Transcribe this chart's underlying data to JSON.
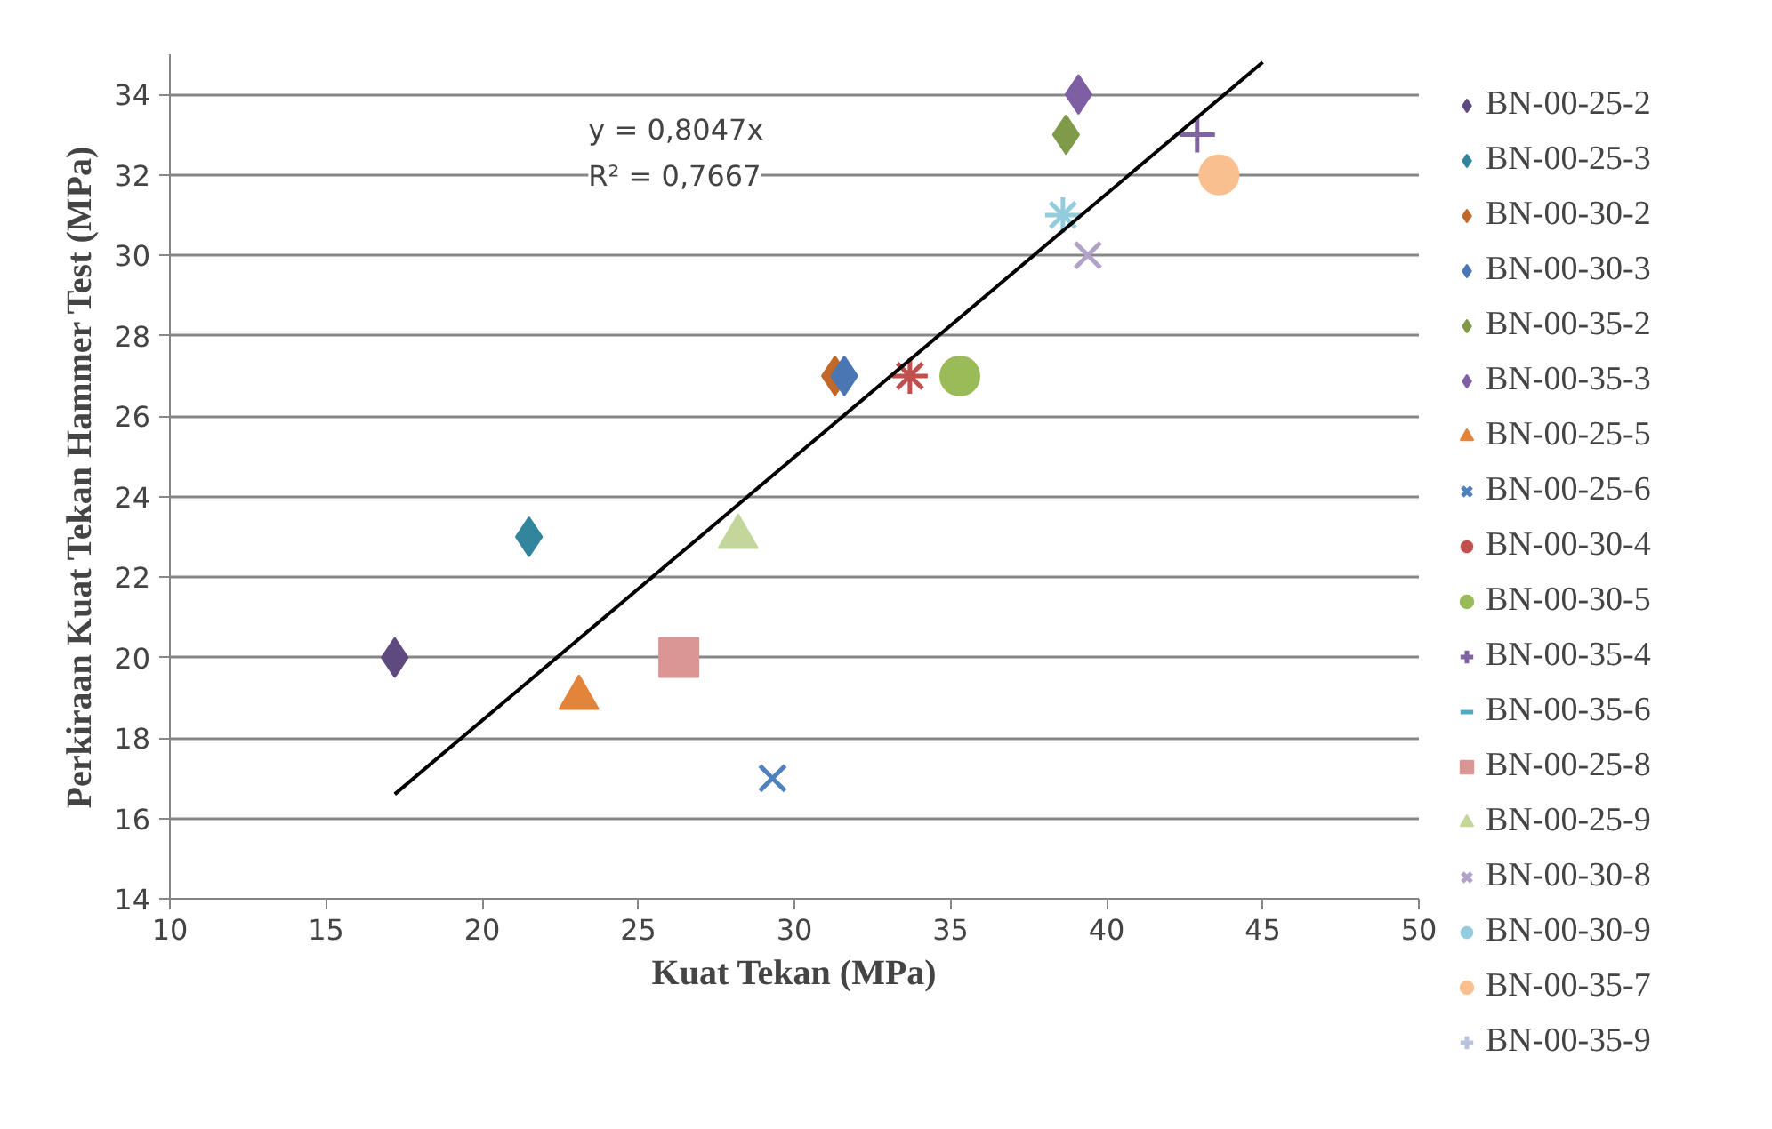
{
  "chart_data": {
    "type": "scatter",
    "xlabel": "Kuat Tekan (MPa)",
    "ylabel": "Perkiraan Kuat Tekan Hammer Test (MPa)",
    "xlim": [
      10,
      50
    ],
    "xticks": [
      10,
      15,
      20,
      25,
      30,
      35,
      40,
      45,
      50
    ],
    "ylim": [
      14,
      35
    ],
    "yticks": [
      14,
      16,
      18,
      20,
      22,
      24,
      26,
      28,
      30,
      32,
      34
    ],
    "grid": "y",
    "legend": "right",
    "annotations": [
      "y = 0,8047x",
      "R² = 0,7667"
    ],
    "series": [
      {
        "name": "BN-00-25-2",
        "color": "#5f4a7f",
        "marker": "diamond",
        "x": [
          17.2
        ],
        "values": [
          20
        ]
      },
      {
        "name": "BN-00-25-3",
        "color": "#31859c",
        "marker": "diamond",
        "x": [
          21.5
        ],
        "values": [
          23
        ]
      },
      {
        "name": "BN-00-30-2",
        "color": "#c0692b",
        "marker": "diamond",
        "x": [
          31.3
        ],
        "values": [
          27
        ]
      },
      {
        "name": "BN-00-30-3",
        "color": "#4a76b4",
        "marker": "diamond",
        "x": [
          31.6
        ],
        "values": [
          27
        ]
      },
      {
        "name": "BN-00-35-2",
        "color": "#7f9a48",
        "marker": "diamond",
        "x": [
          38.7
        ],
        "values": [
          33
        ]
      },
      {
        "name": "BN-00-35-3",
        "color": "#7e5fa3",
        "marker": "diamond",
        "x": [
          39.1
        ],
        "values": [
          34
        ]
      },
      {
        "name": "BN-00-25-5",
        "color": "#e2843a",
        "marker": "triangle",
        "x": [
          23.1
        ],
        "values": [
          19
        ]
      },
      {
        "name": "BN-00-25-6",
        "color": "#4f81bd",
        "marker": "x",
        "x": [
          29.3
        ],
        "values": [
          17
        ]
      },
      {
        "name": "BN-00-30-4",
        "color": "#c0504d",
        "x": [
          33.7
        ],
        "values": [
          27
        ]
      },
      {
        "name": "BN-00-30-5",
        "color": "#9bbb59",
        "marker": "circle",
        "x": [
          35.3
        ],
        "values": [
          27
        ]
      },
      {
        "name": "BN-00-35-4",
        "color": "#8064a2",
        "marker": "cross",
        "x": [
          42.9
        ],
        "values": [
          33
        ]
      },
      {
        "name": "BN-00-35-6",
        "color": "#4bacc6",
        "marker": "dash",
        "x": [
          null
        ],
        "values": [
          null
        ]
      },
      {
        "name": "BN-00-25-8",
        "color": "#d99694",
        "marker": "square",
        "x": [
          26.3
        ],
        "values": [
          20
        ]
      },
      {
        "name": "BN-00-25-9",
        "color": "#c3d69b",
        "marker": "triangle",
        "x": [
          28.2
        ],
        "values": [
          23
        ]
      },
      {
        "name": "BN-00-30-8",
        "color": "#b3a2c7",
        "marker": "x",
        "x": [
          39.4
        ],
        "values": [
          30
        ]
      },
      {
        "name": "BN-00-30-9",
        "color": "#93cddd",
        "x": [
          38.6
        ],
        "values": [
          31
        ]
      },
      {
        "name": "BN-00-35-7",
        "color": "#fabf8f",
        "marker": "circle",
        "x": [
          43.6
        ],
        "values": [
          32
        ]
      },
      {
        "name": "BN-00-35-9",
        "color": "#b9c3e0",
        "marker": "cross",
        "x": [
          null
        ],
        "values": [
          null
        ]
      },
      {
        "type": "line",
        "color": "#000000",
        "marker": "none",
        "x": [
          17.2,
          45
        ],
        "values": [
          16.6,
          34.8
        ]
      }
    ]
  }
}
